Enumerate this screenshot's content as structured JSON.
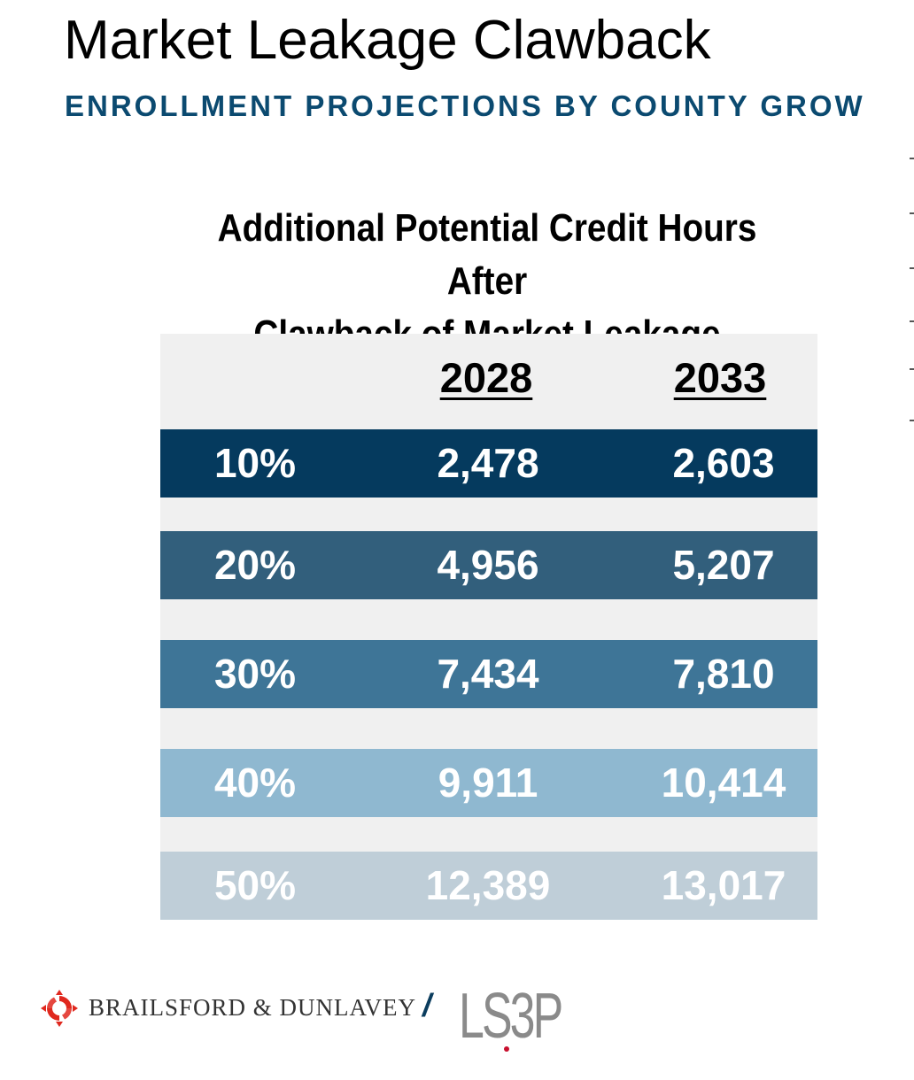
{
  "header": {
    "title": "Market Leakage Clawback",
    "subtitle": "ENROLLMENT PROJECTIONS BY COUNTY GROW"
  },
  "table": {
    "title_lines": [
      "Additional Potential Credit Hours After",
      "Clawback of Market Leakage"
    ],
    "years": [
      "2028",
      "2033"
    ],
    "rows": [
      {
        "pct": "10%",
        "y2028": "2,478",
        "y2033": "2,603",
        "color": "#053a5e"
      },
      {
        "pct": "20%",
        "y2028": "4,956",
        "y2033": "5,207",
        "color": "#325f7c"
      },
      {
        "pct": "30%",
        "y2028": "7,434",
        "y2033": "7,810",
        "color": "#3e7597"
      },
      {
        "pct": "40%",
        "y2028": "9,911",
        "y2033": "10,414",
        "color": "#8fb8d0"
      },
      {
        "pct": "50%",
        "y2028": "12,389",
        "y2033": "13,017",
        "color": "#bfced8"
      }
    ]
  },
  "footer": {
    "brand_primary": "BRAILSFORD & DUNLAVEY",
    "separator": "/",
    "brand_secondary": "LS3P"
  },
  "colors": {
    "subtitle": "#0b4a70",
    "table_bg": "#f0f0f0",
    "logo_red": "#e0281e"
  }
}
